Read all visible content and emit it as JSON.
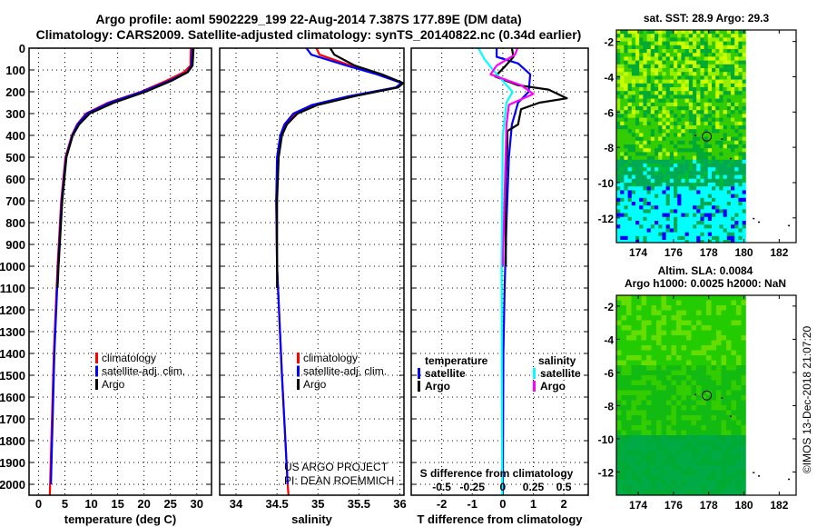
{
  "title": {
    "line1": "Argo profile: aoml 5902229_199 22-Aug-2014 7.387S 177.89E (DM data)",
    "line2": "Climatology: CARS2009. Satellite-adjusted climatology: synTS_20140822.nc (0.34d earlier)"
  },
  "colors": {
    "climatology": "#ff0000",
    "satellite": "#0000ff",
    "argo": "#000000",
    "sal_satellite": "#00ffff",
    "sal_argo": "#ff00ff"
  },
  "depth_ticks": [
    0,
    100,
    200,
    300,
    400,
    500,
    600,
    700,
    800,
    900,
    1000,
    1100,
    1200,
    1300,
    1400,
    1500,
    1600,
    1700,
    1800,
    1900,
    2000
  ],
  "annotations": {
    "project": "US ARGO PROJECT",
    "pi": "PI: DEAN ROEMMICH",
    "s_diff_title": "S difference from climatology",
    "copyright": "©IMOS 13-Dec-2018 21:07:20"
  },
  "chart_data": [
    {
      "type": "line",
      "xlabel": "temperature (deg C)",
      "ylabel": "",
      "xlim": [
        -1.8,
        32.8
      ],
      "ylim": [
        2050,
        0
      ],
      "xticks": [
        0,
        5,
        10,
        15,
        20,
        25,
        30
      ],
      "legend": {
        "placement": "lower-middle",
        "entries": [
          "climatology",
          "satellite-adj. clim.",
          "Argo"
        ]
      },
      "series": [
        {
          "name": "climatology",
          "color": "#ff0000",
          "depth": [
            0,
            80,
            110,
            150,
            200,
            250,
            300,
            350,
            400,
            500,
            700,
            1000,
            1400,
            2000,
            2050
          ],
          "values": [
            28.9,
            28.8,
            27.6,
            24.2,
            19.4,
            13.2,
            9.0,
            7.3,
            6.3,
            5.1,
            4.3,
            3.6,
            2.9,
            2.2,
            2.15
          ]
        },
        {
          "name": "satellite-adj. clim.",
          "color": "#0000ff",
          "depth": [
            0,
            80,
            110,
            150,
            200,
            250,
            300,
            350,
            400,
            500,
            700,
            1000,
            1400,
            2000
          ],
          "values": [
            29.2,
            29.0,
            28.2,
            24.8,
            19.6,
            13.5,
            9.2,
            7.4,
            6.4,
            5.2,
            4.4,
            3.7,
            3.0,
            2.35
          ]
        },
        {
          "name": "Argo",
          "color": "#000000",
          "depth": [
            0,
            80,
            110,
            150,
            200,
            250,
            300,
            350,
            400,
            500,
            700,
            1000,
            1100
          ],
          "values": [
            29.4,
            29.2,
            28.3,
            25.2,
            20.3,
            14.3,
            9.7,
            7.7,
            6.5,
            5.3,
            4.5,
            3.8,
            3.6
          ]
        }
      ]
    },
    {
      "type": "line",
      "xlabel": "salinity",
      "xlim": [
        33.8,
        36.05
      ],
      "ylim": [
        2050,
        0
      ],
      "xticks": [
        34,
        34.5,
        35,
        35.5,
        36
      ],
      "legend": {
        "placement": "lower-middle",
        "entries": [
          "climatology",
          "satellite-adj. clim.",
          "Argo"
        ]
      },
      "series": [
        {
          "name": "climatology",
          "color": "#ff0000",
          "depth": [
            0,
            30,
            80,
            120,
            160,
            180,
            220,
            260,
            300,
            350,
            400,
            500,
            700,
            1000,
            1500,
            2000,
            2050
          ],
          "values": [
            34.98,
            35.02,
            35.4,
            35.75,
            36.03,
            35.96,
            35.4,
            34.95,
            34.72,
            34.6,
            34.55,
            34.51,
            34.49,
            34.5,
            34.56,
            34.63,
            34.64
          ]
        },
        {
          "name": "satellite-adj. clim.",
          "color": "#0000ff",
          "depth": [
            0,
            30,
            80,
            120,
            160,
            180,
            220,
            260,
            300,
            350,
            400,
            500,
            700,
            1000,
            1500,
            2000
          ],
          "values": [
            34.86,
            34.92,
            35.35,
            35.72,
            36.02,
            35.95,
            35.38,
            34.93,
            34.7,
            34.59,
            34.54,
            34.5,
            34.49,
            34.5,
            34.56,
            34.63
          ]
        },
        {
          "name": "Argo",
          "color": "#000000",
          "depth": [
            0,
            30,
            80,
            120,
            160,
            180,
            220,
            260,
            300,
            350,
            400,
            500,
            700,
            1000,
            1100
          ],
          "values": [
            35.15,
            35.2,
            35.45,
            35.78,
            36.04,
            35.98,
            35.45,
            35.0,
            34.75,
            34.62,
            34.56,
            34.52,
            34.5,
            34.5,
            34.5
          ]
        }
      ]
    },
    {
      "type": "line",
      "xlabel": "T difference from climatology",
      "xlim": [
        -3.0,
        2.8
      ],
      "ylim": [
        2050,
        0
      ],
      "xticks": [
        -2,
        -1,
        0,
        1,
        2
      ],
      "s_xticks": [
        "-0.5",
        "-0.25",
        "0",
        "0.25",
        "0.5"
      ],
      "legend": {
        "placement": "middle",
        "temperature_title": "temperature",
        "salinity_title": "salinity",
        "entries": [
          "satellite",
          "Argo",
          "satellite",
          "Argo"
        ]
      },
      "series": [
        {
          "name": "T satellite",
          "color": "#0000ff",
          "depth": [
            0,
            40,
            70,
            120,
            200,
            250,
            350,
            500,
            800,
            1100,
            1400,
            2050
          ],
          "values": [
            -0.2,
            -0.2,
            0.5,
            0.9,
            0.85,
            0.5,
            0.3,
            0.2,
            0.12,
            0.06,
            0.02,
            0.0
          ]
        },
        {
          "name": "T Argo",
          "color": "#000000",
          "depth": [
            0,
            40,
            80,
            130,
            170,
            190,
            230,
            250,
            280,
            350,
            380,
            450,
            600,
            800,
            1000
          ],
          "values": [
            0.3,
            0.35,
            0.1,
            -0.25,
            0.5,
            1.5,
            2.1,
            1.2,
            0.6,
            0.5,
            0.15,
            0.15,
            0.1,
            0.1,
            0.1
          ]
        },
        {
          "name": "S satellite",
          "color": "#00ffff",
          "scale": 4,
          "depth": [
            0,
            50,
            100,
            150,
            200,
            250,
            400,
            1000,
            2050
          ],
          "values": [
            -0.2,
            -0.15,
            -0.08,
            0.0,
            0.08,
            0.03,
            0.0,
            -0.01,
            -0.005
          ]
        },
        {
          "name": "S Argo",
          "color": "#ff00ff",
          "scale": 4,
          "depth": [
            0,
            30,
            80,
            120,
            170,
            210,
            260,
            350,
            1000
          ],
          "values": [
            0.12,
            0.1,
            -0.05,
            -0.1,
            0.15,
            0.25,
            0.05,
            0.03,
            0.0
          ]
        }
      ]
    },
    {
      "type": "heatmap",
      "title": "sat. SST: 28.9 Argo: 29.3",
      "xlim": [
        172.76,
        182.96
      ],
      "ylim": [
        -13.4,
        -1.35
      ],
      "xticks": [
        174,
        176,
        178,
        180,
        182
      ],
      "yticks": [
        -2,
        -4,
        -6,
        -8,
        -10,
        -12
      ],
      "data_lon_max": 180.1,
      "argo_position": {
        "lon": 177.89,
        "lat": -7.387
      }
    },
    {
      "type": "heatmap",
      "title": "Altim. SLA: 0.0084",
      "subtitle": "Argo h1000: 0.0025 h2000: NaN",
      "xlim": [
        172.76,
        182.96
      ],
      "ylim": [
        -13.4,
        -1.35
      ],
      "xticks": [
        174,
        176,
        178,
        180,
        182
      ],
      "yticks": [
        -2,
        -4,
        -6,
        -8,
        -10,
        -12
      ],
      "data_lon_max": 180.1,
      "argo_position": {
        "lon": 177.89,
        "lat": -7.387
      }
    }
  ]
}
